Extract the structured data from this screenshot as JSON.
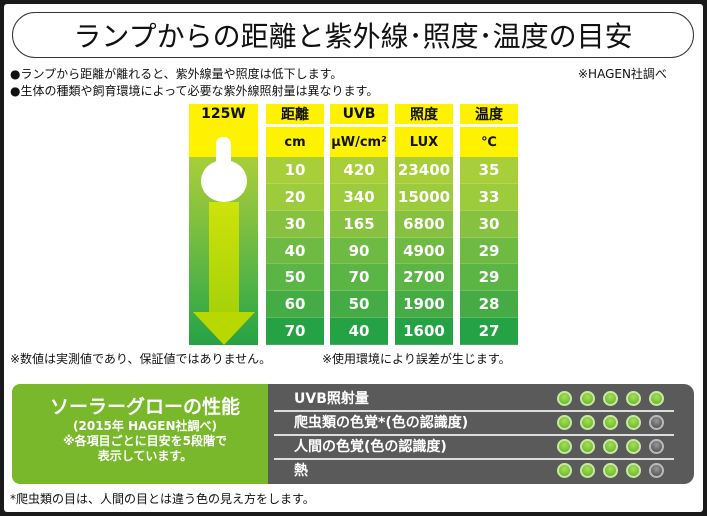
{
  "title": "ランプからの距離と紫外線･照度･温度の目安",
  "notes": {
    "line1": "●ランプから距離が離れると、紫外線量や照度は低下します。",
    "line2": "●生体の種類や飼育環境によって必要な紫外線照射量は異なります。",
    "source": "※HAGEN社調べ",
    "disclaimer1": "※数値は実測値であり、保証値ではありません。",
    "disclaimer2": "※使用環境により誤差が生じます。",
    "footnote": "*爬虫類の目は、人間の目とは違う色の見え方をします。"
  },
  "table": {
    "lamp_label": "125W",
    "columns": [
      {
        "header": "距離",
        "unit": "cm",
        "values": [
          "10",
          "20",
          "30",
          "40",
          "50",
          "60",
          "70"
        ]
      },
      {
        "header": "UVB",
        "unit": "μW/cm²",
        "values": [
          "420",
          "340",
          "165",
          "90",
          "70",
          "50",
          "40"
        ]
      },
      {
        "header": "照度",
        "unit": "LUX",
        "values": [
          "23400",
          "15000",
          "6800",
          "4900",
          "2700",
          "1900",
          "1600"
        ]
      },
      {
        "header": "温度",
        "unit": "℃",
        "values": [
          "35",
          "33",
          "30",
          "29",
          "29",
          "28",
          "27"
        ]
      }
    ],
    "header_color": "#fff200",
    "row_colors": [
      "#a8cf3a",
      "#9ccb3c",
      "#86c23f",
      "#6fba42",
      "#5bb545",
      "#45ac45",
      "#25a244"
    ]
  },
  "chart_data": {
    "type": "table",
    "title": "ランプからの距離と紫外線･照度･温度の目安",
    "lamp": "125W",
    "columns": [
      "距離 (cm)",
      "UVB (μW/cm²)",
      "照度 (LUX)",
      "温度 (℃)"
    ],
    "rows": [
      [
        10,
        420,
        23400,
        35
      ],
      [
        20,
        340,
        15000,
        33
      ],
      [
        30,
        165,
        6800,
        30
      ],
      [
        40,
        90,
        4900,
        29
      ],
      [
        50,
        70,
        2700,
        29
      ],
      [
        60,
        50,
        1900,
        28
      ],
      [
        70,
        40,
        1600,
        27
      ]
    ]
  },
  "performance": {
    "heading": "ソーラーグローの性能",
    "sub1": "(2015年 HAGEN社調べ)",
    "sub2": "※各項目ごとに目安を5段階で",
    "sub3": "表示しています。",
    "items": [
      {
        "label": "UVB照射量",
        "score": 5
      },
      {
        "label": "爬虫類の色覚*(色の認識度)",
        "score": 4
      },
      {
        "label": "人間の色覚(色の認識度)",
        "score": 4
      },
      {
        "label": "熱",
        "score": 4
      }
    ],
    "max_score": 5
  }
}
